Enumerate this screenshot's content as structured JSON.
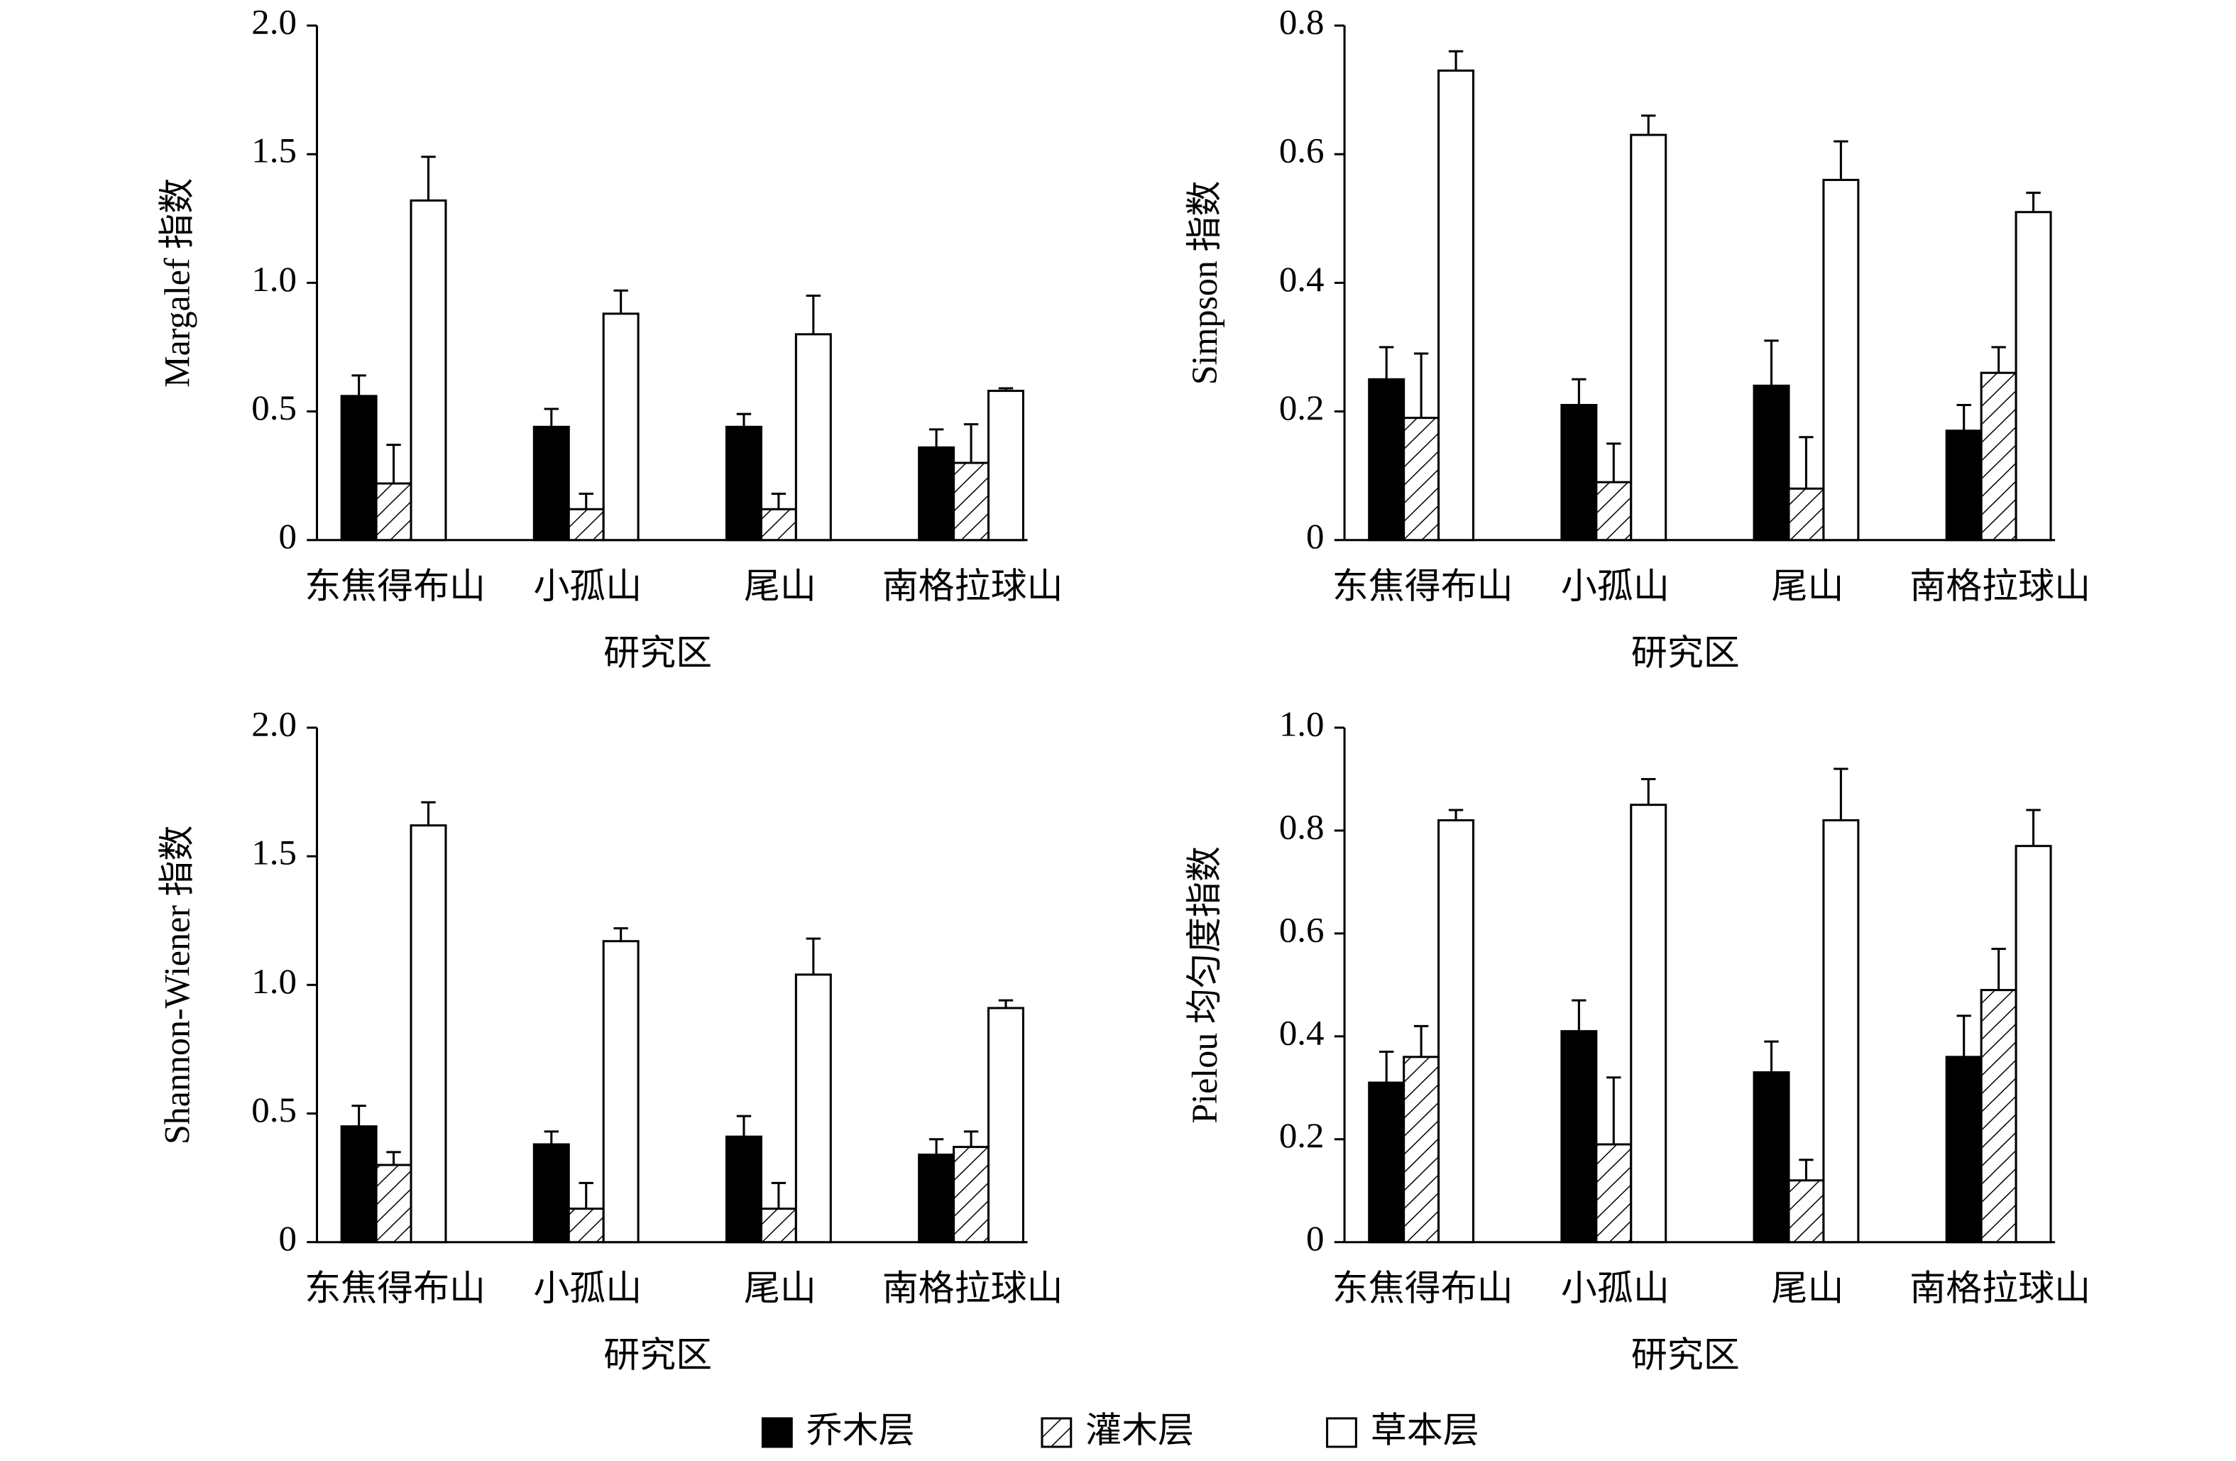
{
  "legend": [
    {
      "name": "乔木层",
      "fill": "#000000"
    },
    {
      "name": "灌木层",
      "fill": "hatch"
    },
    {
      "name": "草本层",
      "fill": "#ffffff"
    }
  ],
  "chart_data": [
    {
      "type": "bar",
      "ylabel": "Margalef 指数",
      "xlabel": "研究区",
      "categories": [
        "东焦得布山",
        "小孤山",
        "尾山",
        "南格拉球山"
      ],
      "series": [
        {
          "values": [
            0.56,
            0.44,
            0.44,
            0.36
          ],
          "errors": [
            0.08,
            0.07,
            0.05,
            0.07
          ]
        },
        {
          "values": [
            0.22,
            0.12,
            0.12,
            0.3
          ],
          "errors": [
            0.15,
            0.06,
            0.06,
            0.15
          ]
        },
        {
          "values": [
            1.32,
            0.88,
            0.8,
            0.58
          ],
          "errors": [
            0.17,
            0.09,
            0.15,
            0.01
          ]
        }
      ],
      "ylim": [
        0,
        2
      ],
      "yticks": [
        0,
        0.5,
        {
          "value": 1,
          "label": "1.0"
        },
        1.5,
        {
          "value": 2,
          "label": "2.0"
        }
      ]
    },
    {
      "type": "bar",
      "ylabel": "Simpson 指数",
      "xlabel": "研究区",
      "categories": [
        "东焦得布山",
        "小孤山",
        "尾山",
        "南格拉球山"
      ],
      "series": [
        {
          "values": [
            0.25,
            0.21,
            0.24,
            0.17
          ],
          "errors": [
            0.05,
            0.04,
            0.07,
            0.04
          ]
        },
        {
          "values": [
            0.19,
            0.09,
            0.08,
            0.26
          ],
          "errors": [
            0.1,
            0.06,
            0.08,
            0.04
          ]
        },
        {
          "values": [
            0.73,
            0.63,
            0.56,
            0.51
          ],
          "errors": [
            0.03,
            0.03,
            0.06,
            0.03
          ]
        }
      ],
      "ylim": [
        0,
        0.8
      ],
      "yticks": [
        0,
        0.2,
        0.4,
        0.6,
        0.8
      ]
    },
    {
      "type": "bar",
      "ylabel": "Shannon-Wiener 指数",
      "xlabel": "研究区",
      "categories": [
        "东焦得布山",
        "小孤山",
        "尾山",
        "南格拉球山"
      ],
      "series": [
        {
          "values": [
            0.45,
            0.38,
            0.41,
            0.34
          ],
          "errors": [
            0.08,
            0.05,
            0.08,
            0.06
          ]
        },
        {
          "values": [
            0.3,
            0.13,
            0.13,
            0.37
          ],
          "errors": [
            0.05,
            0.1,
            0.1,
            0.06
          ]
        },
        {
          "values": [
            1.62,
            1.17,
            1.04,
            0.91
          ],
          "errors": [
            0.09,
            0.05,
            0.14,
            0.03
          ]
        }
      ],
      "ylim": [
        0,
        2
      ],
      "yticks": [
        0,
        0.5,
        {
          "value": 1,
          "label": "1.0"
        },
        1.5,
        {
          "value": 2,
          "label": "2.0"
        }
      ]
    },
    {
      "type": "bar",
      "ylabel": "Pielou 均匀度指数",
      "xlabel": "研究区",
      "categories": [
        "东焦得布山",
        "小孤山",
        "尾山",
        "南格拉球山"
      ],
      "series": [
        {
          "values": [
            0.31,
            0.41,
            0.33,
            0.36
          ],
          "errors": [
            0.06,
            0.06,
            0.06,
            0.08
          ]
        },
        {
          "values": [
            0.36,
            0.19,
            0.12,
            0.49
          ],
          "errors": [
            0.06,
            0.13,
            0.04,
            0.08
          ]
        },
        {
          "values": [
            0.82,
            0.85,
            0.82,
            0.77
          ],
          "errors": [
            0.02,
            0.05,
            0.1,
            0.07
          ]
        }
      ],
      "ylim": [
        0,
        1
      ],
      "yticks": [
        0,
        0.2,
        0.4,
        0.6,
        0.8,
        {
          "value": 1,
          "label": "1.0"
        }
      ]
    }
  ]
}
